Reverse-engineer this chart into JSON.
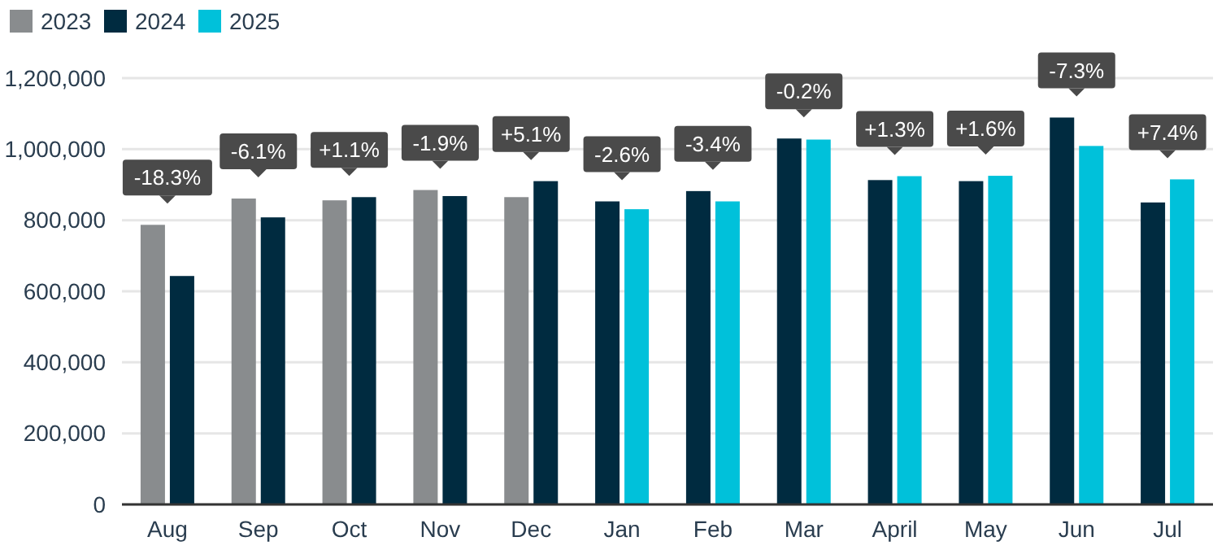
{
  "chart_data": {
    "type": "bar",
    "categories": [
      "Aug",
      "Sep",
      "Oct",
      "Nov",
      "Dec",
      "Jan",
      "Feb",
      "Mar",
      "April",
      "May",
      "Jun",
      "Jul"
    ],
    "series": [
      {
        "name": "2023",
        "color": "#898c8e",
        "values": [
          787000,
          861000,
          856000,
          885000,
          865000,
          null,
          null,
          null,
          null,
          null,
          null,
          null
        ]
      },
      {
        "name": "2024",
        "color": "#002b40",
        "values": [
          643000,
          808000,
          865000,
          868000,
          910000,
          853000,
          882000,
          1030000,
          913000,
          910000,
          1089000,
          850000
        ]
      },
      {
        "name": "2025",
        "color": "#00c1da",
        "values": [
          null,
          null,
          null,
          null,
          null,
          831000,
          853000,
          1027000,
          924000,
          925000,
          1009000,
          915000
        ]
      }
    ],
    "ylim": [
      0,
      1200000
    ],
    "yticks": [
      {
        "value": 0,
        "label": "0"
      },
      {
        "value": 200000,
        "label": "200,000"
      },
      {
        "value": 400000,
        "label": "400,000"
      },
      {
        "value": 600000,
        "label": "600,000"
      },
      {
        "value": 800000,
        "label": "800,000"
      },
      {
        "value": 1000000,
        "label": "1,000,000"
      },
      {
        "value": 1200000,
        "label": "1,200,000"
      }
    ],
    "grid": "y",
    "legend": "top left",
    "annotations": [
      {
        "text": "-18.3%",
        "x": "Aug",
        "y": 787000
      },
      {
        "text": "-6.1%",
        "x": "Sep",
        "y": 861000
      },
      {
        "text": "+1.1%",
        "x": "Oct",
        "y": 865000
      },
      {
        "text": "-1.9%",
        "x": "Nov",
        "y": 885000
      },
      {
        "text": "+5.1%",
        "x": "Dec",
        "y": 910000
      },
      {
        "text": "-2.6%",
        "x": "Jan",
        "y": 853000
      },
      {
        "text": "-3.4%",
        "x": "Feb",
        "y": 882000
      },
      {
        "text": "-0.2%",
        "x": "Mar",
        "y": 1030000
      },
      {
        "text": "+1.3%",
        "x": "April",
        "y": 924000
      },
      {
        "text": "+1.6%",
        "x": "May",
        "y": 925000
      },
      {
        "text": "-7.3%",
        "x": "Jun",
        "y": 1089000
      },
      {
        "text": "+7.4%",
        "x": "Jul",
        "y": 915000
      }
    ]
  }
}
